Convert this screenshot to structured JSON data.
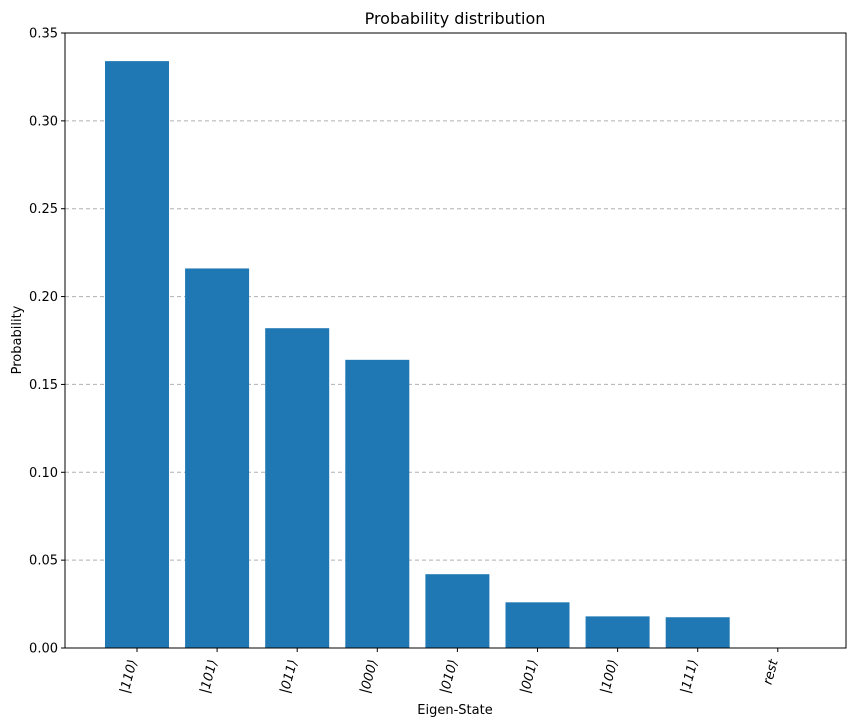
{
  "chart_data": {
    "type": "bar",
    "title": "Probability distribution",
    "xlabel": "Eigen-State",
    "ylabel": "Probability",
    "categories": [
      "|110⟩",
      "|101⟩",
      "|011⟩",
      "|000⟩",
      "|010⟩",
      "|001⟩",
      "|100⟩",
      "|111⟩",
      "rest"
    ],
    "values": [
      0.334,
      0.216,
      0.182,
      0.164,
      0.042,
      0.026,
      0.018,
      0.0175,
      0.0
    ],
    "ylim": [
      0,
      0.35
    ],
    "yticks": [
      "0.00",
      "0.05",
      "0.10",
      "0.15",
      "0.20",
      "0.25",
      "0.30",
      "0.35"
    ],
    "ytick_values": [
      0,
      0.05,
      0.1,
      0.15,
      0.2,
      0.25,
      0.3,
      0.35
    ],
    "bar_color": "#1f77b4",
    "grid": "y-dashed"
  }
}
